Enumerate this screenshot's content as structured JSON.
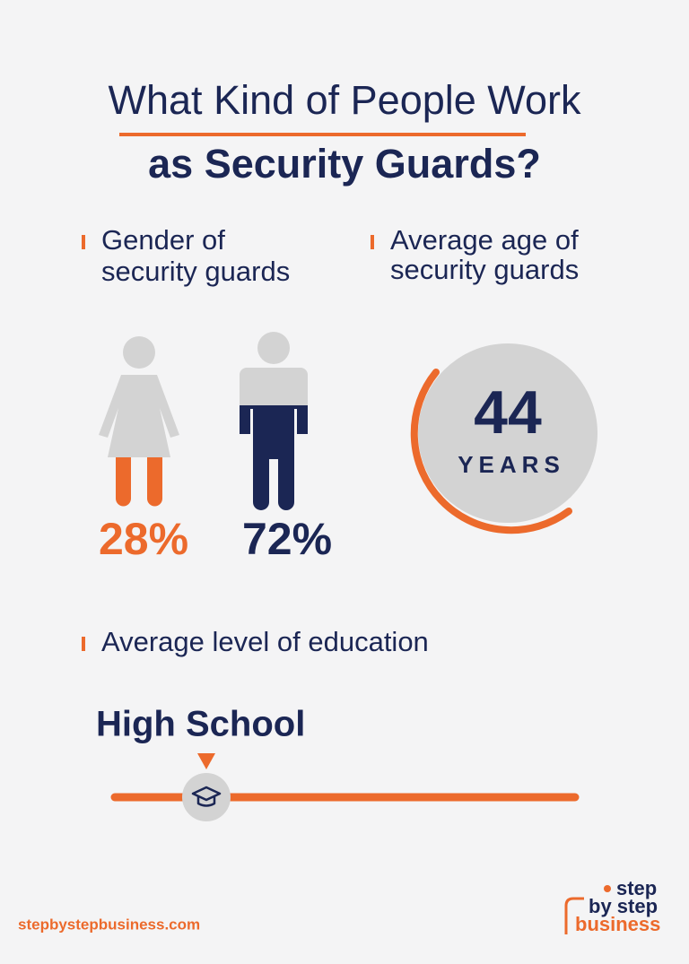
{
  "title": {
    "line1": "What Kind of People Work",
    "line2": "as Security Guards?"
  },
  "gender": {
    "label": [
      "Gender of",
      "security guards"
    ],
    "female": "28%",
    "male": "72%"
  },
  "age": {
    "label": [
      "Average age of",
      "security guards"
    ],
    "value": "44",
    "unit": "YEARS"
  },
  "education": {
    "label": "Average level of education",
    "value": "High School"
  },
  "footer": {
    "url": "stepbystepbusiness.com",
    "logo": [
      "step",
      "by step",
      "business"
    ]
  }
}
